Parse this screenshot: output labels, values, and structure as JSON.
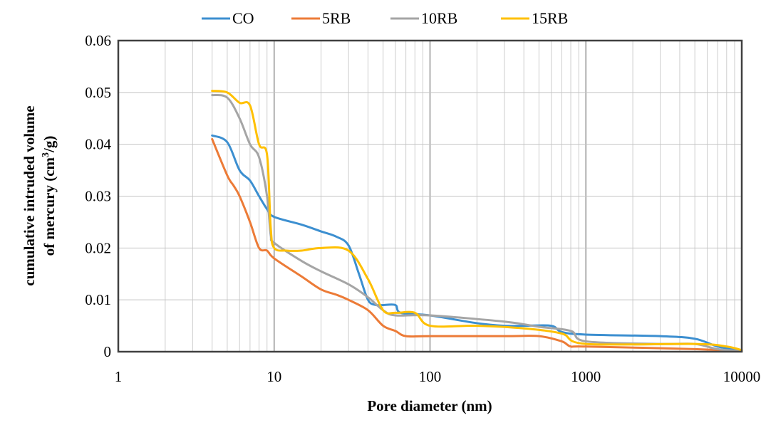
{
  "chart_data": {
    "type": "line",
    "title": "",
    "xlabel": "Pore diameter (nm)",
    "ylabel_line1": "cumulative intruded volume",
    "ylabel_line2_prefix": "of mercury  (cm",
    "ylabel_line2_sup": "3",
    "ylabel_line2_suffix": "/g)",
    "x_scale": "log",
    "xlim": [
      1,
      10000
    ],
    "ylim": [
      0,
      0.06
    ],
    "grid": true,
    "legend_position": "top",
    "x_ticks": [
      {
        "value": 1,
        "label": "1"
      },
      {
        "value": 10,
        "label": "10"
      },
      {
        "value": 100,
        "label": "100"
      },
      {
        "value": 1000,
        "label": "1000"
      },
      {
        "value": 10000,
        "label": "10000"
      }
    ],
    "y_ticks": [
      {
        "value": 0,
        "label": "0"
      },
      {
        "value": 0.01,
        "label": "0.01"
      },
      {
        "value": 0.02,
        "label": "0.02"
      },
      {
        "value": 0.03,
        "label": "0.03"
      },
      {
        "value": 0.04,
        "label": "0.04"
      },
      {
        "value": 0.05,
        "label": "0.05"
      },
      {
        "value": 0.06,
        "label": "0.06"
      }
    ],
    "series": [
      {
        "name": "CO",
        "color": "#3c8fd0",
        "points": [
          [
            4,
            0.0417
          ],
          [
            5,
            0.0404
          ],
          [
            6,
            0.035
          ],
          [
            7,
            0.033
          ],
          [
            8,
            0.03
          ],
          [
            9,
            0.0275
          ],
          [
            10,
            0.026
          ],
          [
            15,
            0.0245
          ],
          [
            20,
            0.0232
          ],
          [
            25,
            0.0222
          ],
          [
            30,
            0.0205
          ],
          [
            35,
            0.015
          ],
          [
            40,
            0.01
          ],
          [
            45,
            0.009
          ],
          [
            50,
            0.009
          ],
          [
            60,
            0.009
          ],
          [
            65,
            0.0075
          ],
          [
            100,
            0.007
          ],
          [
            200,
            0.0055
          ],
          [
            300,
            0.005
          ],
          [
            400,
            0.005
          ],
          [
            600,
            0.005
          ],
          [
            700,
            0.0038
          ],
          [
            1000,
            0.0033
          ],
          [
            3000,
            0.003
          ],
          [
            5000,
            0.0025
          ],
          [
            7000,
            0.001
          ],
          [
            10000,
            0.0001
          ]
        ]
      },
      {
        "name": "5RB",
        "color": "#ec7b37",
        "points": [
          [
            4,
            0.041
          ],
          [
            5,
            0.034
          ],
          [
            5.5,
            0.032
          ],
          [
            6,
            0.03
          ],
          [
            7,
            0.025
          ],
          [
            8,
            0.02
          ],
          [
            9,
            0.0195
          ],
          [
            10,
            0.018
          ],
          [
            15,
            0.0145
          ],
          [
            20,
            0.012
          ],
          [
            25,
            0.011
          ],
          [
            30,
            0.01
          ],
          [
            40,
            0.008
          ],
          [
            50,
            0.005
          ],
          [
            60,
            0.004
          ],
          [
            70,
            0.003
          ],
          [
            100,
            0.003
          ],
          [
            300,
            0.003
          ],
          [
            500,
            0.003
          ],
          [
            700,
            0.002
          ],
          [
            800,
            0.001
          ],
          [
            1000,
            0.001
          ],
          [
            5000,
            0.0005
          ],
          [
            10000,
            0.0001
          ]
        ]
      },
      {
        "name": "10RB",
        "color": "#a5a5a5",
        "points": [
          [
            4,
            0.0495
          ],
          [
            5,
            0.049
          ],
          [
            6,
            0.045
          ],
          [
            7,
            0.04
          ],
          [
            8,
            0.0375
          ],
          [
            9,
            0.03
          ],
          [
            9.5,
            0.0225
          ],
          [
            10,
            0.021
          ],
          [
            15,
            0.0175
          ],
          [
            20,
            0.0155
          ],
          [
            30,
            0.013
          ],
          [
            40,
            0.0105
          ],
          [
            50,
            0.008
          ],
          [
            60,
            0.007
          ],
          [
            100,
            0.007
          ],
          [
            300,
            0.0058
          ],
          [
            500,
            0.0048
          ],
          [
            800,
            0.004
          ],
          [
            1000,
            0.002
          ],
          [
            3000,
            0.0015
          ],
          [
            5000,
            0.0015
          ],
          [
            7000,
            0.0005
          ],
          [
            10000,
            0.0001
          ]
        ]
      },
      {
        "name": "15RB",
        "color": "#ffc000",
        "points": [
          [
            4,
            0.0503
          ],
          [
            5,
            0.05
          ],
          [
            6,
            0.048
          ],
          [
            7,
            0.0475
          ],
          [
            8,
            0.04
          ],
          [
            9,
            0.038
          ],
          [
            9.5,
            0.024
          ],
          [
            10,
            0.02
          ],
          [
            12,
            0.0195
          ],
          [
            15,
            0.0195
          ],
          [
            20,
            0.02
          ],
          [
            30,
            0.0195
          ],
          [
            40,
            0.014
          ],
          [
            50,
            0.008
          ],
          [
            60,
            0.0075
          ],
          [
            80,
            0.0075
          ],
          [
            100,
            0.005
          ],
          [
            200,
            0.005
          ],
          [
            400,
            0.0045
          ],
          [
            700,
            0.0035
          ],
          [
            1000,
            0.0015
          ],
          [
            5000,
            0.0015
          ],
          [
            8000,
            0.001
          ],
          [
            10000,
            0.0003
          ]
        ]
      }
    ]
  }
}
